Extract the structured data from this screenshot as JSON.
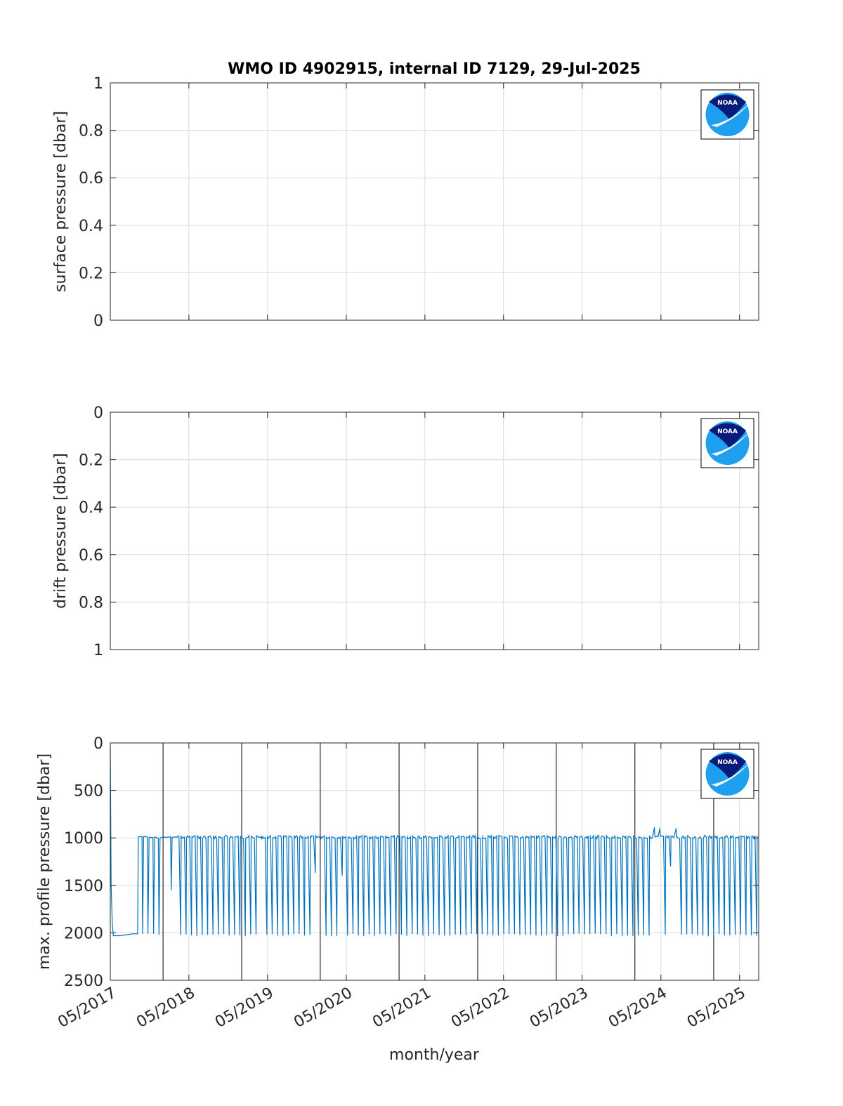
{
  "colors": {
    "series": "#0072bd",
    "grid": "#dcdcdc",
    "axes": "#262626",
    "logo_dark": "#0a1a7a",
    "logo_light": "#1f9ff0"
  },
  "logo": {
    "icon": "noaa-logo-icon",
    "text": "NOAA"
  },
  "chart_data": [
    {
      "type": "line",
      "title": "WMO ID 4902915, internal ID 7129, 29-Jul-2025",
      "ylabel": "surface pressure [dbar]",
      "xlabel": "",
      "ylim": [
        0,
        1
      ],
      "y_reversed": false,
      "yticks": [
        "0",
        "0.2",
        "0.4",
        "0.6",
        "0.8",
        "1"
      ],
      "ytick_values": [
        0,
        0.2,
        0.4,
        0.6,
        0.8,
        1
      ],
      "grid": true,
      "series": []
    },
    {
      "type": "line",
      "title": "",
      "ylabel": "drift pressure [dbar]",
      "xlabel": "",
      "ylim": [
        0,
        1
      ],
      "y_reversed": true,
      "yticks": [
        "0",
        "0.2",
        "0.4",
        "0.6",
        "0.8",
        "1"
      ],
      "ytick_values": [
        0,
        0.2,
        0.4,
        0.6,
        0.8,
        1
      ],
      "grid": true,
      "series": []
    },
    {
      "type": "line",
      "title": "",
      "ylabel": "max. profile pressure [dbar]",
      "xlabel": "month/year",
      "ylim": [
        0,
        2500
      ],
      "y_reversed": true,
      "yticks": [
        "0",
        "500",
        "1000",
        "1500",
        "2000",
        "2500"
      ],
      "ytick_values": [
        0,
        500,
        1000,
        1500,
        2000,
        2500
      ],
      "grid": true,
      "year_lines": [
        "01/2018",
        "01/2019",
        "01/2020",
        "01/2021",
        "01/2022",
        "01/2023",
        "01/2024",
        "01/2025"
      ],
      "series": [
        {
          "start_date": "2017-05-01",
          "points": [
            [
              "2017-05-01",
              50
            ],
            [
              "2017-05-05",
              1500
            ],
            [
              "2017-05-10",
              1900
            ],
            [
              "2017-05-15",
              2030
            ],
            [
              "2017-06-15",
              2030
            ],
            [
              "2017-07-15",
              2020
            ],
            [
              "2017-08-15",
              2010
            ],
            [
              "2017-09-05",
              2010
            ],
            [
              "2017-09-08",
              990
            ],
            [
              "2017-09-25",
              985
            ],
            [
              "2017-09-28",
              2010
            ],
            [
              "2017-10-03",
              985
            ],
            [
              "2017-10-20",
              990
            ],
            [
              "2017-10-23",
              2010
            ],
            [
              "2017-10-28",
              995
            ],
            [
              "2017-11-15",
              995
            ],
            [
              "2017-11-18",
              2010
            ],
            [
              "2017-11-23",
              990
            ],
            [
              "2017-12-10",
              1005
            ],
            [
              "2017-12-13",
              2020
            ],
            [
              "2017-12-18",
              1000
            ],
            [
              "2018-01-05",
              990
            ],
            [
              "2018-01-10",
              995
            ],
            [
              "2018-02-05",
              990
            ],
            [
              "2018-02-08",
              1550
            ],
            [
              "2018-02-12",
              995
            ],
            [
              "2018-03-01",
              990
            ]
          ],
          "cycle_values": {
            "high_min": 975,
            "high_max": 1010,
            "low_min": 2010,
            "low_max": 2035,
            "cycle_days": 25
          },
          "notable": [
            {
              "date": "2019-04-01",
              "value": 1000
            },
            {
              "date": "2019-12-20",
              "value": 1370
            },
            {
              "date": "2020-01-01",
              "value": 1000
            },
            {
              "date": "2020-04-20",
              "value": 1400
            },
            {
              "date": "2024-04-10",
              "value": 890
            },
            {
              "date": "2024-05-01",
              "value": 900
            },
            {
              "date": "2024-06-15",
              "value": 1300
            },
            {
              "date": "2024-07-20",
              "value": 900
            }
          ],
          "end_date": "2025-07-15"
        }
      ]
    }
  ],
  "xticks": [
    "05/2017",
    "05/2018",
    "05/2019",
    "05/2020",
    "05/2021",
    "05/2022",
    "05/2023",
    "05/2024",
    "05/2025"
  ],
  "xlim": [
    "2017-05-01",
    "2025-07-29"
  ]
}
